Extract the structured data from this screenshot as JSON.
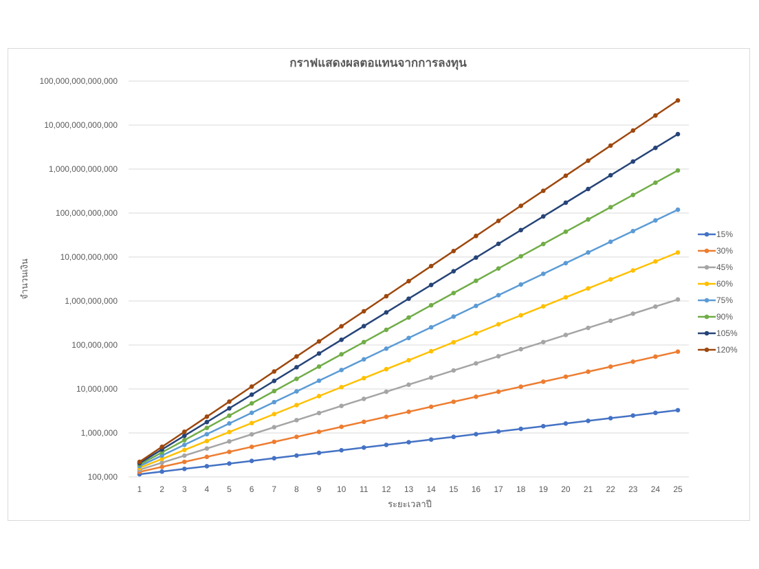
{
  "chart_data": {
    "type": "line",
    "title": "กราฟแสดงผลตอแทนจากการลงทุน",
    "xlabel": "ระยะเวลาปี",
    "ylabel": "จำนวนเงิน",
    "yscale": "log",
    "ylim": [
      100000,
      100000000000000
    ],
    "yticks": [
      "100,000",
      "1,000,000",
      "10,000,000",
      "100,000,000",
      "1,000,000,000",
      "10,000,000,000",
      "100,000,000,000",
      "1,000,000,000,000",
      "10,000,000,000,000",
      "100,000,000,000,000"
    ],
    "grid": true,
    "legend_position": "right",
    "x": [
      1,
      2,
      3,
      4,
      5,
      6,
      7,
      8,
      9,
      10,
      11,
      12,
      13,
      14,
      15,
      16,
      17,
      18,
      19,
      20,
      21,
      22,
      23,
      24,
      25
    ],
    "principal": 100000,
    "series": [
      {
        "name": "15%",
        "rate": 0.15,
        "color": "#4472c4",
        "values": [
          115000,
          132250,
          152088,
          174901,
          201136,
          231306,
          266002,
          305902,
          351788,
          404556,
          465239,
          535025,
          615279,
          707571,
          813706,
          935762,
          1076126,
          1237545,
          1423177,
          1636654,
          1882152,
          2164475,
          2489146,
          2862518,
          3291895
        ]
      },
      {
        "name": "30%",
        "rate": 0.3,
        "color": "#ed7d31",
        "values": [
          130000,
          169000,
          219700,
          285610,
          371293,
          482681,
          627485,
          815731,
          1060450,
          1378585,
          1792160,
          2329809,
          3028751,
          3937376,
          5118589,
          6654166,
          8650416,
          11245541,
          14619203,
          19004964,
          24706453,
          32118389,
          41753906,
          54280077,
          70564100
        ]
      },
      {
        "name": "45%",
        "rate": 0.45,
        "color": "#a5a5a5",
        "values": [
          145000,
          210250,
          304863,
          442051,
          640973,
          929411,
          1347646,
          1954087,
          2833427,
          4108469,
          5957280,
          8638056,
          12525181,
          18161513,
          26334194,
          38184582,
          55367644,
          80283084,
          116410472,
          168795184,
          244753017,
          354891875,
          514593219,
          746160168,
          1081932244
        ]
      },
      {
        "name": "60%",
        "rate": 0.6,
        "color": "#ffc000",
        "values": [
          160000,
          256000,
          409600,
          655360,
          1048576,
          1677722,
          2684355,
          4294967,
          6871948,
          10995116,
          17592186,
          28147498,
          45035996,
          72057594,
          115292150,
          184467441,
          295147905,
          472236648,
          755578637,
          1208925820,
          1934281311,
          3094850098,
          4951760157,
          7922816251,
          12676506002
        ]
      },
      {
        "name": "75%",
        "rate": 0.75,
        "color": "#5b9bd5",
        "values": [
          175000,
          306250,
          535938,
          937891,
          1641309,
          2872290,
          5026507,
          8796387,
          15393677,
          26938934,
          47143134,
          82500484,
          144375847,
          252657732,
          442151031,
          773764304,
          1354087532,
          2369653181,
          4146893067,
          7257062867,
          12699860018,
          22224755032,
          38893321306,
          68063312285,
          119110796499
        ]
      },
      {
        "name": "90%",
        "rate": 0.9,
        "color": "#70ad47",
        "values": [
          190000,
          361000,
          685900,
          1303210,
          2476099,
          4704588,
          8938717,
          16983563,
          32268770,
          61310662,
          116490258,
          221331490,
          420529831,
          799006679,
          1518112690,
          2884414111,
          5480386811,
          10412734940,
          19784196386,
          37589973134,
          71420948955,
          135699803014,
          257829625727,
          489876288881,
          930764948874
        ]
      },
      {
        "name": "105%",
        "rate": 1.05,
        "color": "#264478",
        "values": [
          205000,
          420250,
          861513,
          1766101,
          3620506,
          7422037,
          15215175,
          31191108,
          63941771,
          131080631,
          268715294,
          550866352,
          1129276022,
          2315015845,
          4745782482,
          9728854088,
          19944150881,
          40885509306,
          83815294077,
          171821352858,
          352233773359,
          722079235386,
          1480262432541,
          3034537986709,
          6220802872753
        ]
      },
      {
        "name": "120%",
        "rate": 1.2,
        "color": "#9e480e",
        "values": [
          220000,
          484000,
          1064800,
          2342560,
          5153632,
          11337990,
          24943579,
          54875873,
          120726921,
          265599227,
          584318299,
          1285500258,
          2828100568,
          6221821250,
          13688006750,
          30113614850,
          66249952670,
          145749895874,
          320649770923,
          705429496031,
          1551944891268,
          3414278760789,
          7511413273737,
          16525109202222,
          36355240244888
        ]
      }
    ]
  }
}
